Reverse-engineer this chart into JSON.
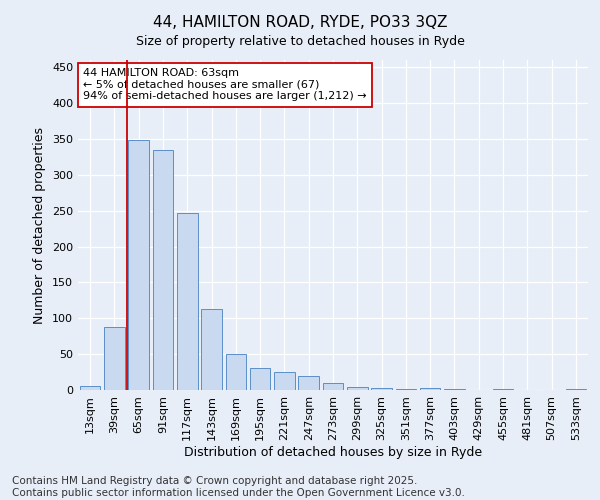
{
  "title": "44, HAMILTON ROAD, RYDE, PO33 3QZ",
  "subtitle": "Size of property relative to detached houses in Ryde",
  "xlabel": "Distribution of detached houses by size in Ryde",
  "ylabel": "Number of detached properties",
  "categories": [
    "13sqm",
    "39sqm",
    "65sqm",
    "91sqm",
    "117sqm",
    "143sqm",
    "169sqm",
    "195sqm",
    "221sqm",
    "247sqm",
    "273sqm",
    "299sqm",
    "325sqm",
    "351sqm",
    "377sqm",
    "403sqm",
    "429sqm",
    "455sqm",
    "481sqm",
    "507sqm",
    "533sqm"
  ],
  "values": [
    5,
    88,
    348,
    335,
    247,
    113,
    50,
    31,
    25,
    20,
    10,
    4,
    3,
    2,
    3,
    1,
    0,
    2,
    0,
    0,
    2
  ],
  "bar_color": "#c8d9f0",
  "bar_edge_color": "#5b8fc9",
  "vline_index": 2,
  "vline_color": "#cc0000",
  "annotation_text": "44 HAMILTON ROAD: 63sqm\n← 5% of detached houses are smaller (67)\n94% of semi-detached houses are larger (1,212) →",
  "annotation_box_color": "#ffffff",
  "annotation_box_edge": "#cc0000",
  "ylim": [
    0,
    460
  ],
  "background_color": "#e8eef8",
  "footer_line1": "Contains HM Land Registry data © Crown copyright and database right 2025.",
  "footer_line2": "Contains public sector information licensed under the Open Government Licence v3.0.",
  "title_fontsize": 11,
  "axis_label_fontsize": 9,
  "tick_fontsize": 8,
  "annotation_fontsize": 8,
  "footer_fontsize": 7.5
}
